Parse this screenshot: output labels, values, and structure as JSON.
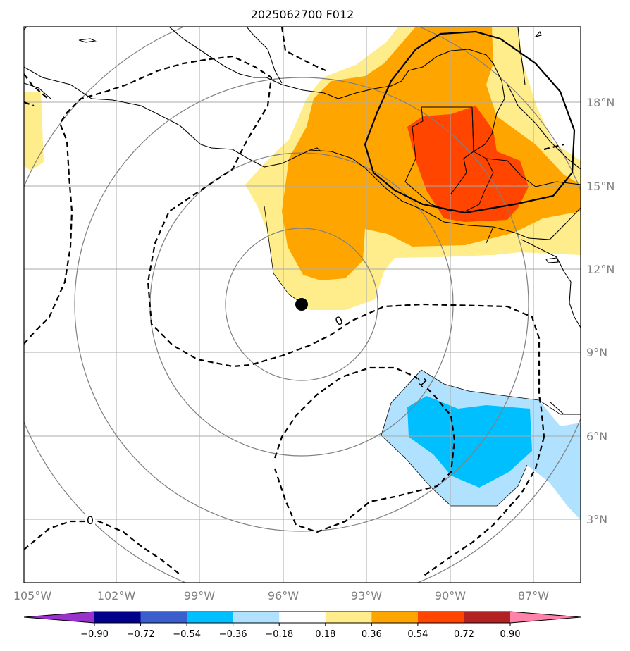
{
  "title": "2025062700 F012",
  "axes": {
    "lon_labels": [
      "105°W",
      "102°W",
      "99°W",
      "96°W",
      "93°W",
      "90°W",
      "87°W"
    ],
    "lat_labels": [
      "18°N",
      "15°N",
      "12°N",
      "9°N",
      "6°N",
      "3°N"
    ]
  },
  "contour_labels": [
    "0",
    "-1",
    "0"
  ],
  "colorbar": {
    "levels": [
      "-0.90",
      "-0.72",
      "-0.54",
      "-0.36",
      "-0.18",
      "0.18",
      "0.36",
      "0.54",
      "0.72",
      "0.90"
    ],
    "colors": [
      "#9932cc",
      "#00008b",
      "#3a5fcd",
      "#00bfff",
      "#b0e2ff",
      "#ffffff",
      "#ffec8b",
      "#ffa500",
      "#ff4500",
      "#b22222",
      "#ff82ab"
    ]
  },
  "marker": {
    "type": "storm-center",
    "color": "#000000"
  }
}
